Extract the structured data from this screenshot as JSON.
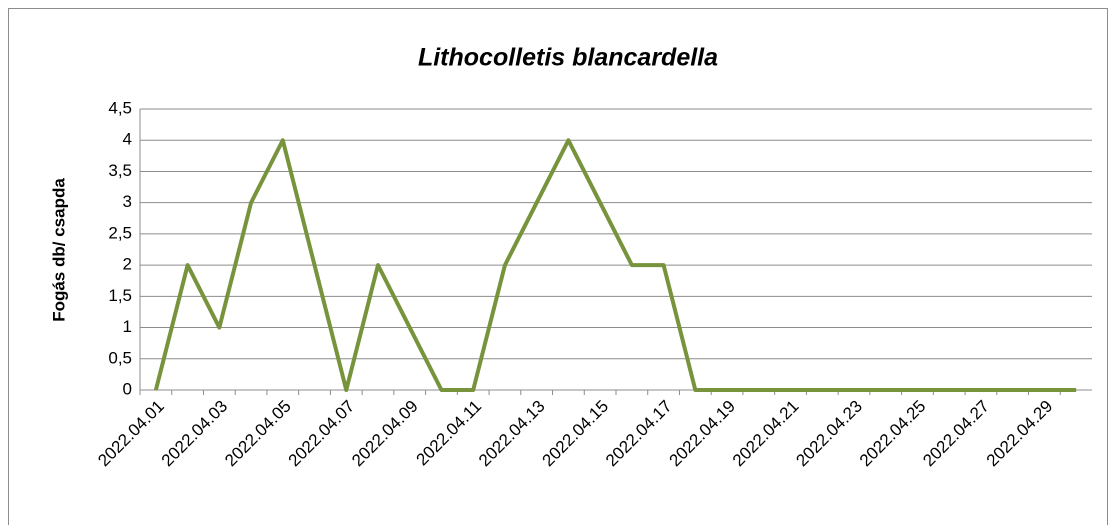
{
  "chart_data": {
    "type": "line",
    "title": "Lithocolletis blancardella",
    "y_label": "Fogás db/ csapda",
    "categories": [
      "2022.04.01",
      null,
      "2022.04.03",
      null,
      "2022.04.05",
      null,
      "2022.04.07",
      null,
      "2022.04.09",
      null,
      "2022.04.11",
      null,
      "2022.04.13",
      null,
      "2022.04.15",
      null,
      "2022.04.17",
      null,
      "2022.04.19",
      null,
      "2022.04.21",
      null,
      "2022.04.23",
      null,
      "2022.04.25",
      null,
      "2022.04.27",
      null,
      "2022.04.29",
      null
    ],
    "values": [
      0,
      2,
      1,
      3,
      4,
      2,
      0,
      2,
      1,
      0,
      0,
      2,
      3,
      4,
      3,
      2,
      2,
      0,
      0,
      0,
      0,
      0,
      0,
      0,
      0,
      0,
      0,
      0,
      0,
      0
    ],
    "color": "#77933c",
    "ylim": [
      0,
      4.5
    ],
    "yticks": [
      0,
      {
        "value": 0.5,
        "label": "0,5"
      },
      1,
      {
        "value": 1.5,
        "label": "1,5"
      },
      2,
      {
        "value": 2.5,
        "label": "2,5"
      },
      3,
      {
        "value": 3.5,
        "label": "3,5"
      },
      4,
      {
        "value": 4.5,
        "label": "4,5"
      }
    ],
    "grid": true
  }
}
